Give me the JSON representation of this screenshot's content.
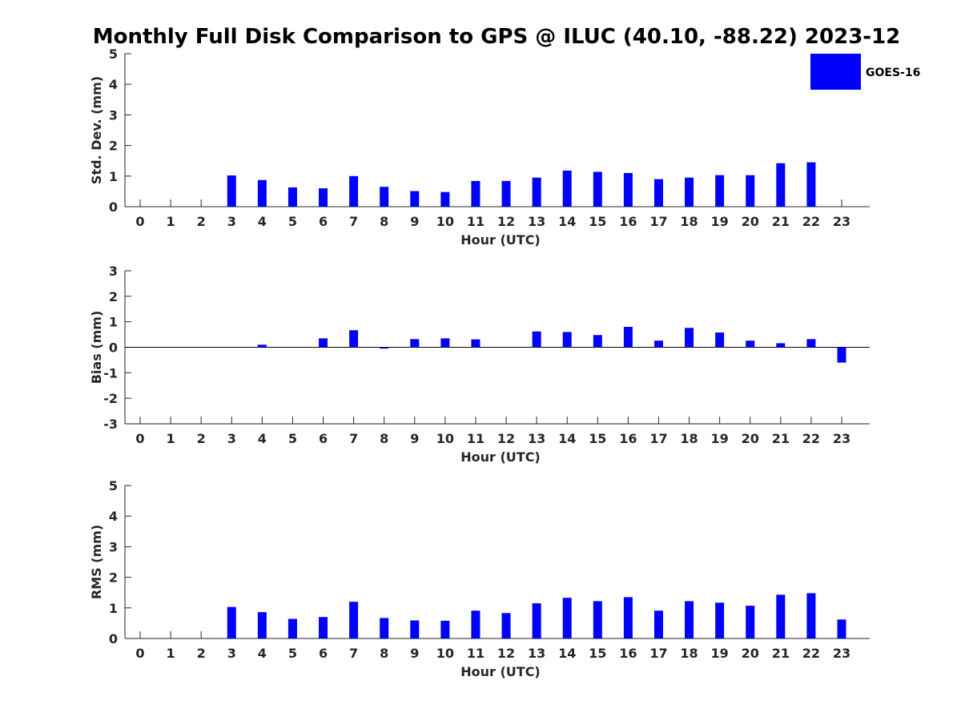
{
  "title": "Monthly Full Disk Comparison to GPS @ ILUC (40.10, -88.22) 2023-12",
  "legend": {
    "label": "GOES-16",
    "color": "#0000ff",
    "placement": "top-right"
  },
  "chart_data": [
    {
      "type": "bar",
      "ylabel": "Std. Dev. (mm)",
      "xlabel": "Hour (UTC)",
      "ylim": [
        0,
        5
      ],
      "yticks": [
        0,
        1,
        2,
        3,
        4,
        5
      ],
      "categories": [
        "0",
        "1",
        "2",
        "3",
        "4",
        "5",
        "6",
        "7",
        "8",
        "9",
        "10",
        "11",
        "12",
        "13",
        "14",
        "15",
        "16",
        "17",
        "18",
        "19",
        "20",
        "21",
        "22",
        "23"
      ],
      "series": [
        {
          "name": "GOES-16",
          "values": [
            0,
            0,
            0,
            1.02,
            0.87,
            0.63,
            0.6,
            1.0,
            0.65,
            0.51,
            0.48,
            0.84,
            0.84,
            0.95,
            1.18,
            1.14,
            1.1,
            0.9,
            0.95,
            1.03,
            1.03,
            1.42,
            1.45,
            0
          ]
        }
      ],
      "grid": false
    },
    {
      "type": "bar",
      "ylabel": "Bias (mm)",
      "xlabel": "Hour (UTC)",
      "ylim": [
        -3,
        3
      ],
      "yticks": [
        -3,
        -2,
        -1,
        0,
        1,
        2,
        3
      ],
      "categories": [
        "0",
        "1",
        "2",
        "3",
        "4",
        "5",
        "6",
        "7",
        "8",
        "9",
        "10",
        "11",
        "12",
        "13",
        "14",
        "15",
        "16",
        "17",
        "18",
        "19",
        "20",
        "21",
        "22",
        "23"
      ],
      "series": [
        {
          "name": "GOES-16",
          "values": [
            0,
            0,
            0,
            0,
            0.1,
            0,
            0.35,
            0.67,
            -0.05,
            0.32,
            0.35,
            0.31,
            0,
            0.62,
            0.6,
            0.48,
            0.8,
            0.26,
            0.76,
            0.58,
            0.26,
            0.16,
            0.32,
            -0.6
          ]
        }
      ],
      "grid": false
    },
    {
      "type": "bar",
      "ylabel": "RMS (mm)",
      "xlabel": "Hour (UTC)",
      "ylim": [
        0,
        5
      ],
      "yticks": [
        0,
        1,
        2,
        3,
        4,
        5
      ],
      "categories": [
        "0",
        "1",
        "2",
        "3",
        "4",
        "5",
        "6",
        "7",
        "8",
        "9",
        "10",
        "11",
        "12",
        "13",
        "14",
        "15",
        "16",
        "17",
        "18",
        "19",
        "20",
        "21",
        "22",
        "23"
      ],
      "series": [
        {
          "name": "GOES-16",
          "values": [
            0,
            0,
            0,
            1.03,
            0.86,
            0.64,
            0.7,
            1.2,
            0.67,
            0.59,
            0.58,
            0.91,
            0.83,
            1.15,
            1.33,
            1.22,
            1.35,
            0.91,
            1.22,
            1.17,
            1.07,
            1.43,
            1.48,
            0.62
          ]
        }
      ],
      "grid": false
    }
  ]
}
